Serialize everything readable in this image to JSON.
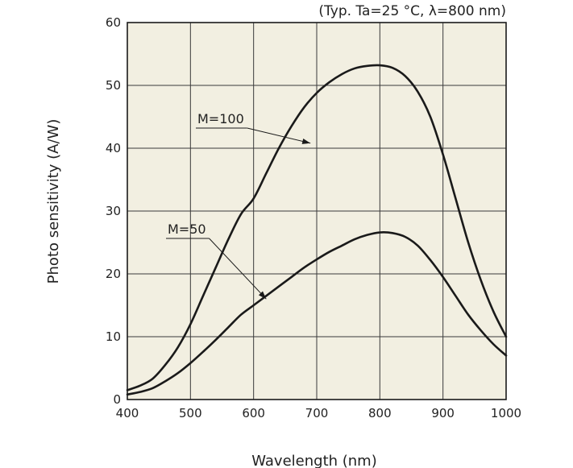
{
  "chart_data": {
    "type": "line",
    "title": "",
    "subtitle": "(Typ. Ta=25 °C, λ=800 nm)",
    "xlabel": "Wavelength (nm)",
    "ylabel": "Photo sensitivity (A/W)",
    "xlim": [
      400,
      1000
    ],
    "ylim": [
      0,
      60
    ],
    "xticks": [
      400,
      500,
      600,
      700,
      800,
      900,
      1000
    ],
    "yticks": [
      0,
      10,
      20,
      30,
      40,
      50,
      60
    ],
    "xtick_labels": [
      "400",
      "500",
      "600",
      "700",
      "800",
      "900",
      "1000"
    ],
    "ytick_labels": [
      "0",
      "10",
      "20",
      "30",
      "40",
      "50",
      "60"
    ],
    "grid": true,
    "plot_background": "#f2efe1",
    "line_color": "#1a1a1a",
    "series": [
      {
        "name": "M=100",
        "x": [
          400,
          420,
          440,
          460,
          480,
          500,
          520,
          540,
          560,
          580,
          600,
          620,
          640,
          660,
          680,
          700,
          720,
          740,
          760,
          780,
          800,
          820,
          840,
          860,
          880,
          900,
          920,
          940,
          960,
          980,
          1000
        ],
        "y": [
          1.5,
          2.2,
          3.3,
          5.5,
          8.3,
          12.0,
          16.5,
          21.0,
          25.5,
          29.5,
          32.0,
          36.0,
          40.0,
          43.5,
          46.5,
          48.8,
          50.5,
          51.8,
          52.7,
          53.1,
          53.2,
          52.8,
          51.5,
          49.0,
          45.0,
          39.0,
          32.0,
          25.0,
          19.0,
          14.0,
          10.0
        ],
        "label_anchor": [
          690,
          40.8
        ]
      },
      {
        "name": "M=50",
        "x": [
          400,
          420,
          440,
          460,
          480,
          500,
          520,
          540,
          560,
          580,
          600,
          620,
          640,
          660,
          680,
          700,
          720,
          740,
          760,
          780,
          800,
          820,
          840,
          860,
          880,
          900,
          920,
          940,
          960,
          980,
          1000
        ],
        "y": [
          0.8,
          1.2,
          1.8,
          2.9,
          4.2,
          5.8,
          7.6,
          9.5,
          11.5,
          13.5,
          15.0,
          16.5,
          18.0,
          19.5,
          21.0,
          22.3,
          23.5,
          24.5,
          25.5,
          26.2,
          26.6,
          26.5,
          25.9,
          24.5,
          22.2,
          19.5,
          16.5,
          13.5,
          11.0,
          8.8,
          7.0
        ],
        "label_anchor": [
          620,
          16.0
        ]
      }
    ]
  }
}
